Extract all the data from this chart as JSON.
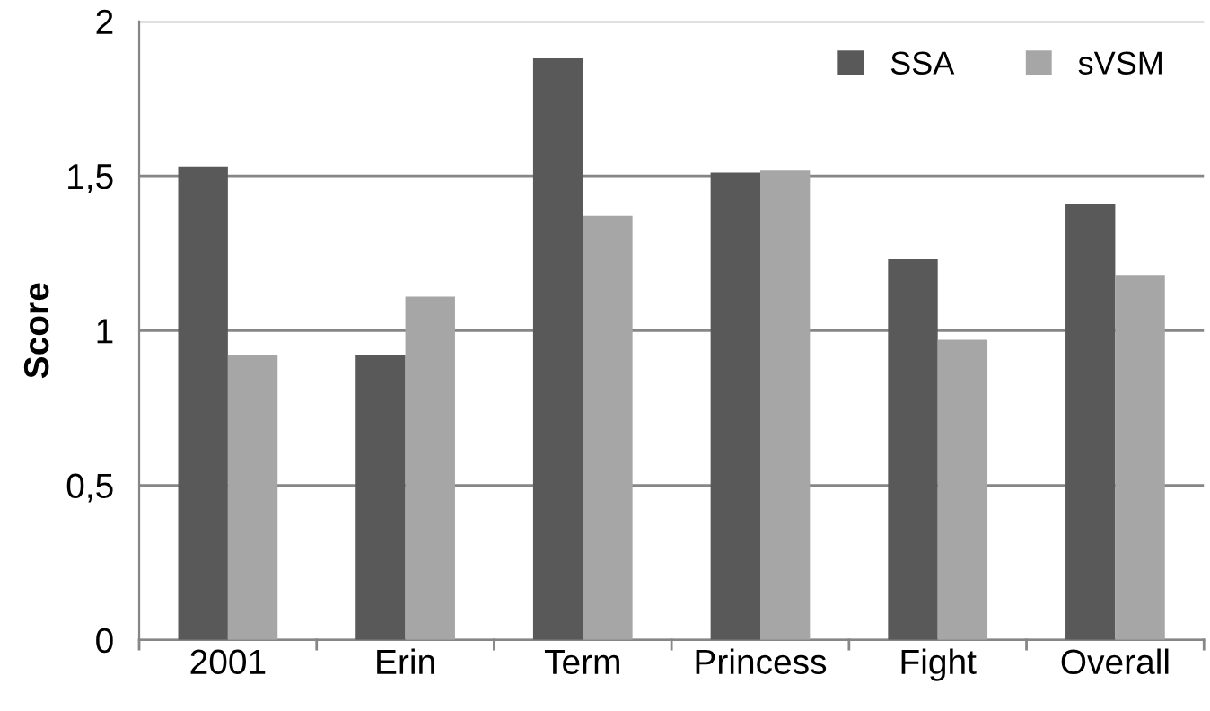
{
  "chart_data": {
    "type": "bar",
    "ylabel": "Score",
    "categories": [
      "2001",
      "Erin",
      "Term",
      "Princess",
      "Fight",
      "Overall"
    ],
    "series": [
      {
        "name": "SSA",
        "color": "#595959",
        "values": [
          1.53,
          0.92,
          1.88,
          1.51,
          1.23,
          1.41
        ]
      },
      {
        "name": "sVSM",
        "color": "#a6a6a6",
        "values": [
          0.92,
          1.11,
          1.37,
          1.52,
          0.97,
          1.18
        ]
      }
    ],
    "ylim": [
      0,
      2
    ],
    "yticks": [
      0,
      {
        "value": 0.5,
        "label": "0,5"
      },
      1,
      {
        "value": 1.5,
        "label": "1,5"
      },
      2
    ],
    "grid": "y",
    "legend": "top right"
  }
}
